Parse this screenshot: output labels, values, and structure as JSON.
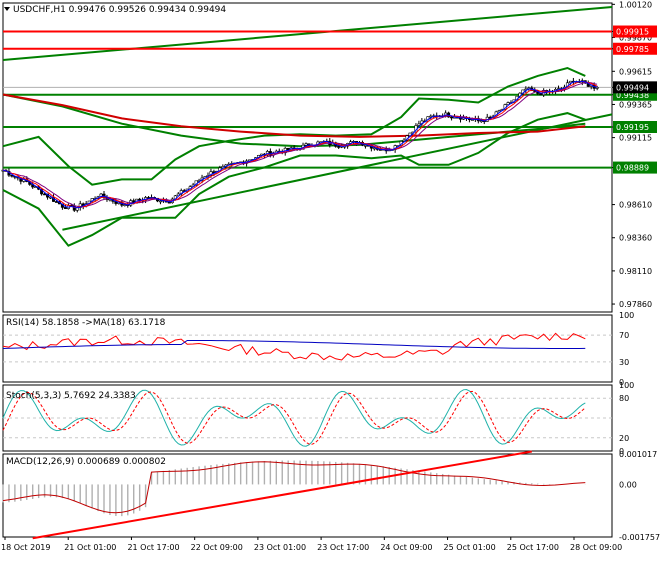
{
  "window": {
    "symbol_line": "USDCHF,H1  0.99476 0.99526 0.99434 0.99494"
  },
  "colors": {
    "background": "#ffffff",
    "frame": "#000000",
    "grid": "#c8c8c8",
    "level_line": "#ff0000",
    "trend_line": "#008000",
    "bollinger": "#008000",
    "sma_slow": "#d00000",
    "candle_up": "#ffffff",
    "candle_down": "#000000",
    "ma_fast": "#0000ff",
    "ma_mid": "#ff0000",
    "ma_slow": "#800080",
    "rsi_line": "#ff0000",
    "rsi_ma": "#0000c0",
    "stoch_main": "#20b2aa",
    "stoch_signal": "#ff0000",
    "macd_hist": "#b0b0b0",
    "macd_signal": "#c00000",
    "price_badge": "#000000"
  },
  "main_axis_labels": [
    "1.00120",
    "0.99915",
    "0.99870",
    "0.99785",
    "0.99615",
    "0.99494",
    "0.99438",
    "0.99365",
    "0.99195",
    "0.99115",
    "0.98889",
    "0.98610",
    "0.98360",
    "0.98110",
    "0.97860"
  ],
  "levels": [
    {
      "price": 0.99915,
      "label": "0.99915",
      "color": "#ff0000"
    },
    {
      "price": 0.99785,
      "label": "0.99785",
      "color": "#ff0000"
    },
    {
      "price": 0.99438,
      "label": "0.99438",
      "color": "#008000"
    },
    {
      "price": 0.99195,
      "label": "0.99195",
      "color": "#008000"
    },
    {
      "price": 0.98889,
      "label": "0.98889",
      "color": "#008000"
    }
  ],
  "current_price": {
    "price": 0.99494,
    "label": "0.99494"
  },
  "time_labels": [
    "18 Oct 2019",
    "21 Oct 01:00",
    "21 Oct 17:00",
    "22 Oct 09:00",
    "23 Oct 01:00",
    "23 Oct 17:00",
    "24 Oct 09:00",
    "25 Oct 01:00",
    "25 Oct 17:00",
    "28 Oct 09:00"
  ],
  "rsi": {
    "title": "RSI(14) 58.1858  ->MA(18) 63.1718",
    "axis_labels": [
      "100",
      "70",
      "30",
      "0"
    ]
  },
  "stoch": {
    "title": "Stoch(5,3,3) 5.7692 24.3383",
    "axis_labels": [
      "100",
      "80",
      "20",
      "0"
    ]
  },
  "macd": {
    "title": "MACD(12,26,9) 0.000689 0.000802",
    "axis_labels": [
      "0.001017",
      "0.00",
      "-0.001757"
    ]
  },
  "chart_data": {
    "type": "candlestick",
    "symbol": "USDCHF",
    "timeframe": "H1",
    "last_bar": {
      "open": 0.99476,
      "high": 0.99526,
      "low": 0.99434,
      "close": 0.99494
    },
    "time_axis": [
      "18 Oct 2019",
      "21 Oct 01:00",
      "21 Oct 17:00",
      "22 Oct 09:00",
      "23 Oct 01:00",
      "23 Oct 17:00",
      "24 Oct 09:00",
      "25 Oct 01:00",
      "25 Oct 17:00",
      "28 Oct 09:00"
    ],
    "ylim": [
      0.978,
      1.0013
    ],
    "close_path": [
      [
        0,
        0.9887
      ],
      [
        4,
        0.9882
      ],
      [
        8,
        0.9878
      ],
      [
        12,
        0.9872
      ],
      [
        16,
        0.9866
      ],
      [
        20,
        0.986
      ],
      [
        24,
        0.9858
      ],
      [
        28,
        0.9862
      ],
      [
        32,
        0.9868
      ],
      [
        36,
        0.9865
      ],
      [
        40,
        0.9861
      ],
      [
        44,
        0.9863
      ],
      [
        48,
        0.9866
      ],
      [
        52,
        0.9865
      ],
      [
        56,
        0.9864
      ],
      [
        60,
        0.987
      ],
      [
        64,
        0.9876
      ],
      [
        68,
        0.9883
      ],
      [
        72,
        0.9887
      ],
      [
        76,
        0.989
      ],
      [
        80,
        0.9893
      ],
      [
        84,
        0.9896
      ],
      [
        88,
        0.9899
      ],
      [
        92,
        0.9901
      ],
      [
        96,
        0.9902
      ],
      [
        100,
        0.9904
      ],
      [
        104,
        0.9907
      ],
      [
        108,
        0.9908
      ],
      [
        112,
        0.9906
      ],
      [
        116,
        0.9907
      ],
      [
        120,
        0.9908
      ],
      [
        124,
        0.9905
      ],
      [
        128,
        0.9902
      ],
      [
        132,
        0.9905
      ],
      [
        136,
        0.9913
      ],
      [
        140,
        0.9922
      ],
      [
        144,
        0.9927
      ],
      [
        148,
        0.9929
      ],
      [
        152,
        0.9928
      ],
      [
        156,
        0.9926
      ],
      [
        160,
        0.9924
      ],
      [
        164,
        0.9926
      ],
      [
        168,
        0.9933
      ],
      [
        172,
        0.994
      ],
      [
        176,
        0.9948
      ],
      [
        180,
        0.9945
      ],
      [
        184,
        0.9946
      ],
      [
        188,
        0.9948
      ],
      [
        192,
        0.9955
      ],
      [
        196,
        0.9952
      ],
      [
        200,
        0.9949
      ]
    ],
    "bollinger": {
      "upper": [
        [
          0,
          0.9905
        ],
        [
          12,
          0.9912
        ],
        [
          22,
          0.989
        ],
        [
          30,
          0.9876
        ],
        [
          40,
          0.988
        ],
        [
          50,
          0.988
        ],
        [
          58,
          0.9895
        ],
        [
          66,
          0.9905
        ],
        [
          76,
          0.9909
        ],
        [
          88,
          0.9913
        ],
        [
          100,
          0.9914
        ],
        [
          112,
          0.9913
        ],
        [
          124,
          0.9914
        ],
        [
          134,
          0.9927
        ],
        [
          140,
          0.9941
        ],
        [
          150,
          0.994
        ],
        [
          160,
          0.9938
        ],
        [
          170,
          0.995
        ],
        [
          180,
          0.9958
        ],
        [
          190,
          0.9964
        ],
        [
          196,
          0.9958
        ]
      ],
      "lower": [
        [
          0,
          0.9872
        ],
        [
          12,
          0.9858
        ],
        [
          22,
          0.983
        ],
        [
          30,
          0.9838
        ],
        [
          40,
          0.9851
        ],
        [
          50,
          0.9851
        ],
        [
          58,
          0.9851
        ],
        [
          66,
          0.9869
        ],
        [
          76,
          0.9882
        ],
        [
          88,
          0.9889
        ],
        [
          100,
          0.9898
        ],
        [
          112,
          0.9898
        ],
        [
          124,
          0.9896
        ],
        [
          134,
          0.9898
        ],
        [
          140,
          0.9891
        ],
        [
          150,
          0.9891
        ],
        [
          160,
          0.99
        ],
        [
          170,
          0.9915
        ],
        [
          180,
          0.9925
        ],
        [
          190,
          0.993
        ],
        [
          196,
          0.9925
        ]
      ]
    },
    "sma_slow": [
      [
        0,
        0.9944
      ],
      [
        20,
        0.9936
      ],
      [
        40,
        0.9926
      ],
      [
        60,
        0.992
      ],
      [
        80,
        0.9916
      ],
      [
        100,
        0.9913
      ],
      [
        120,
        0.9912
      ],
      [
        140,
        0.9913
      ],
      [
        160,
        0.9915
      ],
      [
        180,
        0.9916
      ],
      [
        196,
        0.992
      ]
    ],
    "sma_green": [
      [
        0,
        0.9944
      ],
      [
        20,
        0.9935
      ],
      [
        40,
        0.9922
      ],
      [
        60,
        0.9913
      ],
      [
        80,
        0.9907
      ],
      [
        100,
        0.9905
      ],
      [
        120,
        0.9906
      ],
      [
        140,
        0.991
      ],
      [
        160,
        0.9914
      ],
      [
        180,
        0.9918
      ],
      [
        196,
        0.9922
      ]
    ],
    "trendlines": [
      {
        "from": [
          0,
          0.997
        ],
        "to": [
          205,
          1.001
        ]
      },
      {
        "from": [
          20,
          0.9842
        ],
        "to": [
          205,
          0.9929
        ]
      }
    ],
    "rsi_range": [
      0,
      100
    ],
    "stoch_range": [
      0,
      100
    ],
    "macd_range": [
      -0.001757,
      0.001017
    ],
    "macd_trendline": {
      "from": [
        10,
        -0.0018
      ],
      "to": [
        178,
        0.0011
      ]
    }
  }
}
